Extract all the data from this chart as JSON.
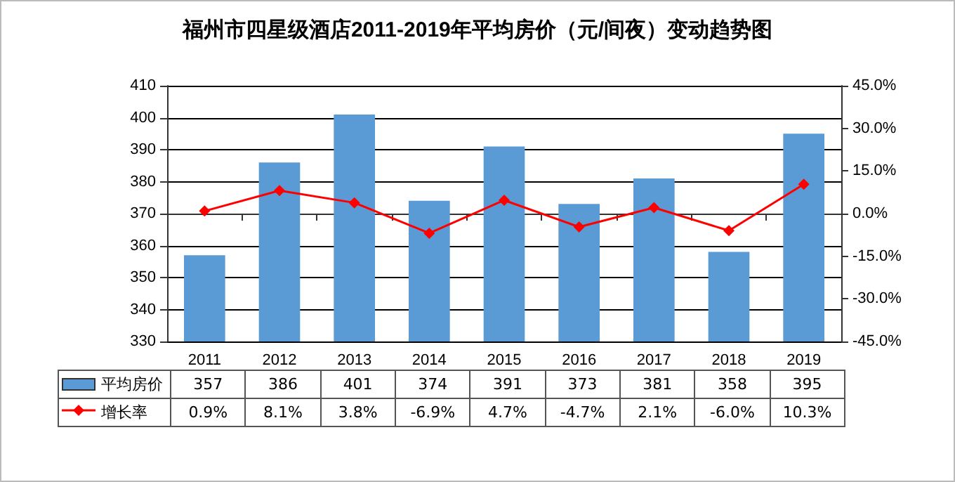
{
  "chart_data": {
    "type": "bar",
    "title": "福州市四星级酒店2011-2019年平均房价（元/间夜）变动趋势图",
    "categories": [
      "2011",
      "2012",
      "2013",
      "2014",
      "2015",
      "2016",
      "2017",
      "2018",
      "2019"
    ],
    "series": [
      {
        "name": "平均房价",
        "color": "#5b9bd5",
        "values": [
          357,
          386,
          401,
          374,
          391,
          373,
          381,
          358,
          395
        ],
        "value_labels": [
          "357",
          "386",
          "401",
          "374",
          "391",
          "373",
          "381",
          "358",
          "395"
        ]
      },
      {
        "name": "增长率",
        "type": "line",
        "axis": "y2",
        "color": "#ff0000",
        "values": [
          0.9,
          8.1,
          3.8,
          -6.9,
          4.7,
          -4.7,
          2.1,
          -6.0,
          10.3
        ],
        "value_labels": [
          "0.9%",
          "8.1%",
          "3.8%",
          "-6.9%",
          "4.7%",
          "-4.7%",
          "2.1%",
          "-6.0%",
          "10.3%"
        ]
      }
    ],
    "ylim": [
      330,
      410
    ],
    "yticks": [
      330,
      340,
      350,
      360,
      370,
      380,
      390,
      400,
      410
    ],
    "y2lim": [
      -45,
      45
    ],
    "y2ticks": [
      {
        "value": -45,
        "label": "-45.0%"
      },
      {
        "value": -30,
        "label": "-30.0%"
      },
      {
        "value": -15,
        "label": "-15.0%"
      },
      {
        "value": 0,
        "label": "0.0%"
      },
      {
        "value": 15,
        "label": "15.0%"
      },
      {
        "value": 30,
        "label": "30.0%"
      },
      {
        "value": 45,
        "label": "45.0%"
      }
    ],
    "grid": "y",
    "legend": "bottom",
    "marker": "diamond",
    "line_style": "solid"
  }
}
